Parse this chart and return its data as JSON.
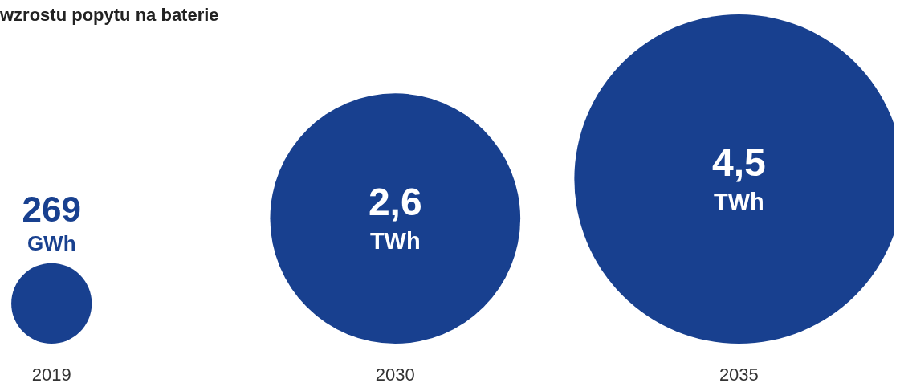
{
  "chart_data": {
    "type": "other",
    "title": "wzrostu popytu na baterie",
    "categories": [
      "2019",
      "2030",
      "2035"
    ],
    "values": [
      269,
      2.6,
      4.5
    ],
    "value_labels": [
      "269 GWh",
      "2,6 TWh",
      "4,5 TWh"
    ],
    "color": "#18408f"
  }
}
